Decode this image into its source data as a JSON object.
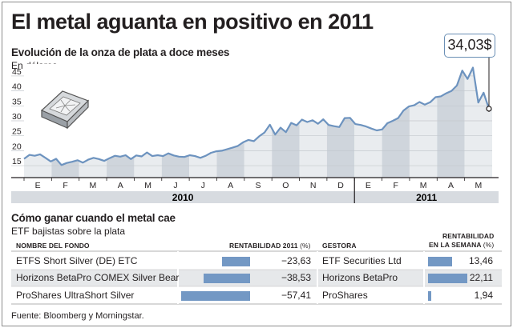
{
  "title": "El metal aguanta en positivo en 2011",
  "chart_data": {
    "type": "area",
    "title": "Evolución de la onza de plata a doce meses",
    "subtitle": "En dólares",
    "y_ticks": [
      15,
      20,
      25,
      30,
      35,
      40,
      45
    ],
    "ylim": [
      11,
      49
    ],
    "month_labels": [
      "E",
      "F",
      "M",
      "A",
      "M",
      "J",
      "J",
      "A",
      "S",
      "O",
      "N",
      "D",
      "E",
      "F",
      "M",
      "A",
      "M"
    ],
    "year_labels": [
      "2010",
      "2011"
    ],
    "series": [
      {
        "values": [
          17.3,
          18.6,
          18.3,
          18.8,
          17.6,
          16.4,
          17.3,
          15.2,
          15.9,
          16.3,
          16.8,
          16.0,
          17.0,
          17.6,
          17.2,
          16.6,
          17.5,
          18.3,
          18.0,
          18.5,
          17.2,
          18.4,
          18.1,
          19.4,
          18.2,
          18.5,
          18.2,
          19.1,
          18.4,
          18.0,
          17.9,
          18.5,
          18.2,
          17.6,
          18.3,
          19.3,
          19.8,
          20.0,
          20.5,
          21.0,
          21.6,
          22.8,
          23.6,
          23.2,
          24.8,
          26.1,
          28.7,
          25.4,
          27.7,
          26.2,
          29.3,
          28.5,
          30.4,
          29.6,
          30.2,
          29.0,
          30.5,
          28.6,
          28.2,
          27.9,
          30.9,
          31.0,
          28.9,
          28.6,
          28.1,
          27.4,
          26.8,
          27.1,
          29.2,
          30.0,
          30.9,
          33.4,
          34.8,
          35.2,
          36.3,
          35.4,
          36.2,
          37.9,
          38.2,
          39.2,
          40.0,
          41.8,
          46.8,
          44.0,
          47.8,
          36.1,
          39.4,
          34.03
        ]
      }
    ],
    "last_value_label": "34,03$"
  },
  "etf": {
    "title": "Cómo ganar cuando el metal cae",
    "subtitle": "ETF bajistas sobre la plata",
    "col_fund": "NOMBRE DEL FONDO",
    "col_return_year": "RENTABILIDAD 2011",
    "col_return_year_unit": "(%)",
    "col_manager": "GESTORA",
    "col_return_week_line1": "RENTABILIDAD",
    "col_return_week_line2": "EN LA SEMANA",
    "col_return_week_unit": "(%)",
    "rows": [
      {
        "fund": "ETFS Short Silver (DE) ETC",
        "ret_year": -23.63,
        "ret_year_label": "−23,63",
        "manager": "ETF Securities Ltd",
        "ret_week": 13.46,
        "ret_week_label": "13,46"
      },
      {
        "fund": "Horizons BetaPro COMEX Silver Bear",
        "ret_year": -38.53,
        "ret_year_label": "−38,53",
        "manager": "Horizons BetaPro",
        "ret_week": 22.11,
        "ret_week_label": "22,11"
      },
      {
        "fund": "ProShares UltraShort Silver",
        "ret_year": -57.41,
        "ret_year_label": "−57,41",
        "manager": "ProShares",
        "ret_week": 1.94,
        "ret_week_label": "1,94"
      }
    ]
  },
  "source": "Fuente: Bloomberg y Morningstar.",
  "colors": {
    "line": "#6d93bf",
    "area_light": "#e9ecef",
    "area_dark": "#cfd5dc",
    "bar": "#7398c4",
    "row_alt": "#e6e8ea"
  }
}
